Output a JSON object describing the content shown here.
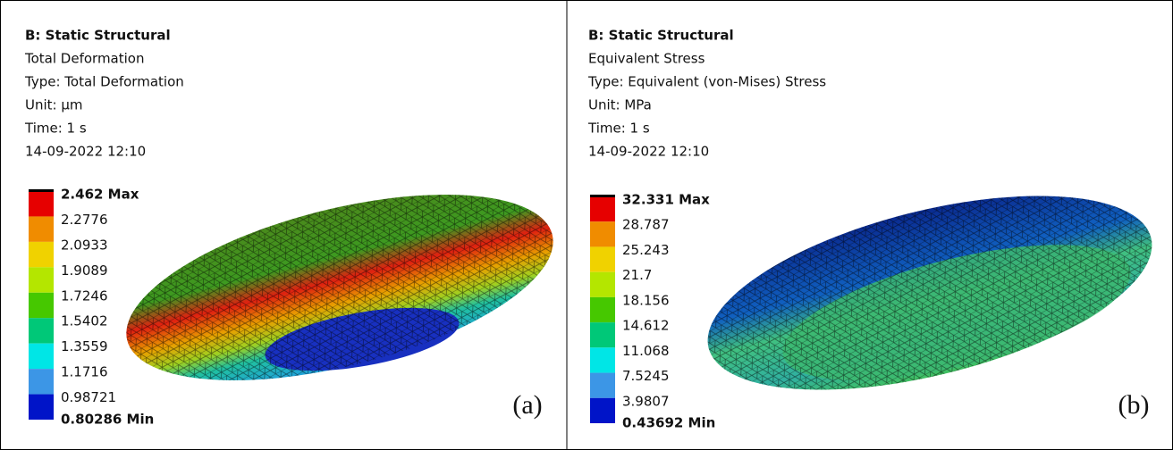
{
  "panels": [
    {
      "header": [
        "B: Static Structural",
        "Total Deformation",
        "Type: Total Deformation",
        "Unit: µm",
        "Time: 1 s",
        "14-09-2022 12:10"
      ],
      "legend": [
        "2.462 Max",
        "2.2776",
        "2.0933",
        "1.9089",
        "1.7246",
        "1.5402",
        "1.3559",
        "1.1716",
        "0.98721",
        "0.80286 Min"
      ],
      "label": "(a)"
    },
    {
      "header": [
        "B: Static Structural",
        "Equivalent Stress",
        "Type: Equivalent (von-Mises) Stress",
        "Unit: MPa",
        "Time: 1 s",
        "14-09-2022 12:10"
      ],
      "legend": [
        "32.331 Max",
        "28.787",
        "25.243",
        "21.7",
        "18.156",
        "14.612",
        "11.068",
        "7.5245",
        "3.9807",
        "0.43692 Min"
      ],
      "label": "(b)"
    }
  ]
}
